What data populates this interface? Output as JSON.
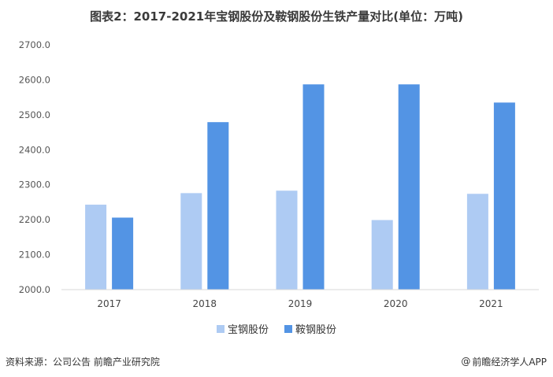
{
  "title": "图表2：2017-2021年宝钢股份及鞍钢股份生铁产量对比(单位：万吨)",
  "colors": {
    "series1": "#aecbf3",
    "series2": "#5394e4",
    "axis": "#d9d9d9"
  },
  "chart_data": {
    "type": "bar",
    "title": "图表2：2017-2021年宝钢股份及鞍钢股份生铁产量对比(单位：万吨)",
    "categories": [
      "2017",
      "2018",
      "2019",
      "2020",
      "2021"
    ],
    "series": [
      {
        "name": "宝钢股份",
        "values": [
          2243,
          2276,
          2283,
          2199,
          2274
        ]
      },
      {
        "name": "鞍钢股份",
        "values": [
          2206,
          2479,
          2587,
          2587,
          2535
        ]
      }
    ],
    "yticks": [
      "2000.0",
      "2100.0",
      "2200.0",
      "2300.0",
      "2400.0",
      "2500.0",
      "2600.0",
      "2700.0"
    ],
    "ylim": [
      2000,
      2700
    ],
    "grid": false,
    "legend": "bottom"
  },
  "footer": {
    "source": "资料来源：公司公告 前瞻产业研究院",
    "brand_symbol": "@",
    "brand": "前瞻经济学人APP"
  }
}
